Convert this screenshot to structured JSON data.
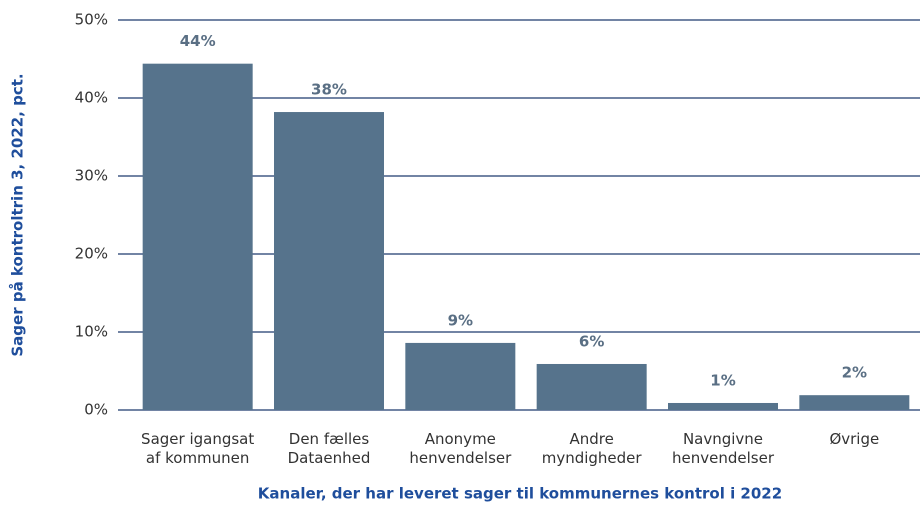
{
  "chart_data": {
    "type": "bar",
    "xlabel": "Kanaler, der har leveret sager til kommunernes kontrol i 2022",
    "ylabel": "Sager på kontroltrin 3, 2022, pct.",
    "categories": [
      "Sager igangsat af kommunen",
      "Den fælles Dataenhed",
      "Anonyme henvendelser",
      "Andre myndigheder",
      "Navngivne henvendelser",
      "Øvrige"
    ],
    "values": [
      44.4,
      38.2,
      8.6,
      5.9,
      0.9,
      1.9
    ],
    "value_labels": [
      "44%",
      "38%",
      "9%",
      "6%",
      "1%",
      "2%"
    ],
    "color": "#56738c",
    "ylim": [
      0,
      50
    ],
    "yticks": [
      {
        "value": 0,
        "label": "0%"
      },
      {
        "value": 10,
        "label": "10%"
      },
      {
        "value": 20,
        "label": "20%"
      },
      {
        "value": 30,
        "label": "30%"
      },
      {
        "value": 40,
        "label": "40%"
      },
      {
        "value": 50,
        "label": "50%"
      }
    ],
    "grid": true
  }
}
